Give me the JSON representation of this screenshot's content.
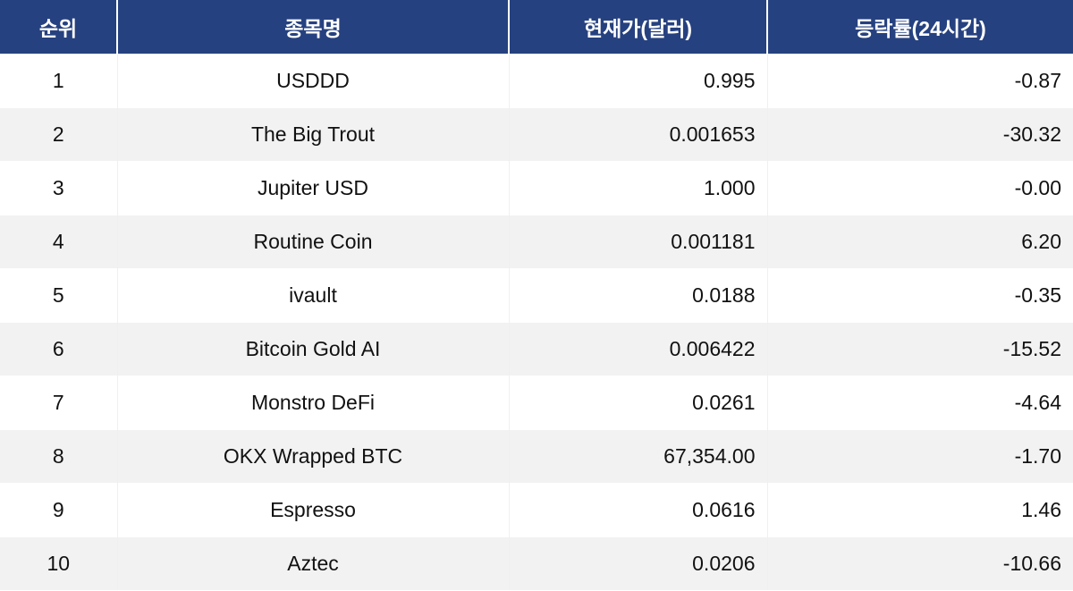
{
  "table": {
    "headers": [
      "순위",
      "종목명",
      "현재가(달러)",
      "등락률(24시간)"
    ],
    "rows": [
      {
        "rank": "1",
        "name": "USDDD",
        "price": "0.995",
        "change": "-0.87"
      },
      {
        "rank": "2",
        "name": "The Big Trout",
        "price": "0.001653",
        "change": "-30.32"
      },
      {
        "rank": "3",
        "name": "Jupiter USD",
        "price": "1.000",
        "change": "-0.00"
      },
      {
        "rank": "4",
        "name": "Routine Coin",
        "price": "0.001181",
        "change": "6.20"
      },
      {
        "rank": "5",
        "name": "ivault",
        "price": "0.0188",
        "change": "-0.35"
      },
      {
        "rank": "6",
        "name": "Bitcoin Gold AI",
        "price": "0.006422",
        "change": "-15.52"
      },
      {
        "rank": "7",
        "name": "Monstro DeFi",
        "price": "0.0261",
        "change": "-4.64"
      },
      {
        "rank": "8",
        "name": "OKX Wrapped BTC",
        "price": "67,354.00",
        "change": "-1.70"
      },
      {
        "rank": "9",
        "name": "Espresso",
        "price": "0.0616",
        "change": "1.46"
      },
      {
        "rank": "10",
        "name": "Aztec",
        "price": "0.0206",
        "change": "-10.66"
      }
    ]
  },
  "colors": {
    "header_bg": "#26417f",
    "header_text": "#ffffff",
    "row_alt_bg": "#f2f2f2"
  }
}
